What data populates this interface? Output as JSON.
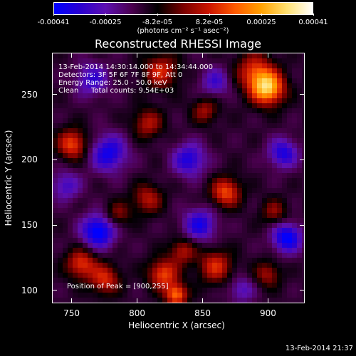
{
  "colorbar": {
    "tick_labels": [
      "-0.00041",
      "-0.00025",
      "-8.2e-05",
      "8.2e-05",
      "0.00025",
      "0.00041"
    ],
    "units": "(photons cm⁻² s⁻¹ asec⁻²)",
    "colors": [
      "#0000ff",
      "#2a00d0",
      "#5d0fb0",
      "#4b0050",
      "#000000",
      "#7a0000",
      "#cc1500",
      "#ff5a00",
      "#ffa000",
      "#ffe070",
      "#ffffff"
    ]
  },
  "title": "Reconstructed RHESSI Image",
  "annotations": {
    "time_range": "13-Feb-2014 14:30:14.000 to 14:34:44.000",
    "detectors": "Detectors: 3F 5F 6F 7F 8F 9F, Att 0",
    "energy_range": "Energy Range: 25.0 - 50.0 keV",
    "clean": "Clean",
    "total_counts": "Total counts: 9.54E+03",
    "peak_position": "Position of Peak = [900,255]"
  },
  "footer": {
    "timestamp": "13-Feb-2014 21:37"
  },
  "chart_data": {
    "type": "heatmap",
    "title": "Reconstructed RHESSI Image",
    "xlabel": "Heliocentric X (arcsec)",
    "ylabel": "Heliocentric Y (arcsec)",
    "xlim": [
      735,
      928
    ],
    "ylim": [
      90,
      282
    ],
    "xticks": [
      750,
      800,
      850,
      900
    ],
    "yticks": [
      100,
      150,
      200,
      250
    ],
    "value_range": [
      -0.00041,
      0.00041
    ],
    "peak": [
      900,
      255
    ],
    "sources": [
      {
        "x": 900,
        "y": 255,
        "amp": 1.0,
        "sigma": 9
      },
      {
        "x": 890,
        "y": 268,
        "amp": 0.55,
        "sigma": 10
      },
      {
        "x": 818,
        "y": 268,
        "amp": 0.55,
        "sigma": 9
      },
      {
        "x": 750,
        "y": 212,
        "amp": 0.65,
        "sigma": 8
      },
      {
        "x": 808,
        "y": 228,
        "amp": 0.45,
        "sigma": 8
      },
      {
        "x": 852,
        "y": 238,
        "amp": 0.4,
        "sigma": 7
      },
      {
        "x": 808,
        "y": 170,
        "amp": 0.45,
        "sigma": 8
      },
      {
        "x": 785,
        "y": 158,
        "amp": 0.35,
        "sigma": 7
      },
      {
        "x": 868,
        "y": 175,
        "amp": 0.65,
        "sigma": 8
      },
      {
        "x": 905,
        "y": 160,
        "amp": 0.35,
        "sigma": 7
      },
      {
        "x": 757,
        "y": 120,
        "amp": 0.6,
        "sigma": 8
      },
      {
        "x": 775,
        "y": 108,
        "amp": 0.55,
        "sigma": 8
      },
      {
        "x": 820,
        "y": 112,
        "amp": 0.65,
        "sigma": 8
      },
      {
        "x": 860,
        "y": 118,
        "amp": 0.55,
        "sigma": 9
      },
      {
        "x": 830,
        "y": 96,
        "amp": 0.75,
        "sigma": 6
      },
      {
        "x": 900,
        "y": 112,
        "amp": 0.4,
        "sigma": 7
      },
      {
        "x": 835,
        "y": 130,
        "amp": 0.45,
        "sigma": 7
      },
      {
        "x": 770,
        "y": 145,
        "amp": -0.75,
        "sigma": 9
      },
      {
        "x": 778,
        "y": 205,
        "amp": -0.6,
        "sigma": 10
      },
      {
        "x": 840,
        "y": 200,
        "amp": -0.55,
        "sigma": 9
      },
      {
        "x": 765,
        "y": 262,
        "amp": -0.45,
        "sigma": 9
      },
      {
        "x": 860,
        "y": 260,
        "amp": -0.4,
        "sigma": 8
      },
      {
        "x": 848,
        "y": 150,
        "amp": -0.55,
        "sigma": 9
      },
      {
        "x": 915,
        "y": 140,
        "amp": -0.7,
        "sigma": 8
      },
      {
        "x": 912,
        "y": 205,
        "amp": -0.55,
        "sigma": 8
      },
      {
        "x": 745,
        "y": 180,
        "amp": -0.4,
        "sigma": 8
      },
      {
        "x": 880,
        "y": 100,
        "amp": -0.35,
        "sigma": 7
      }
    ]
  }
}
